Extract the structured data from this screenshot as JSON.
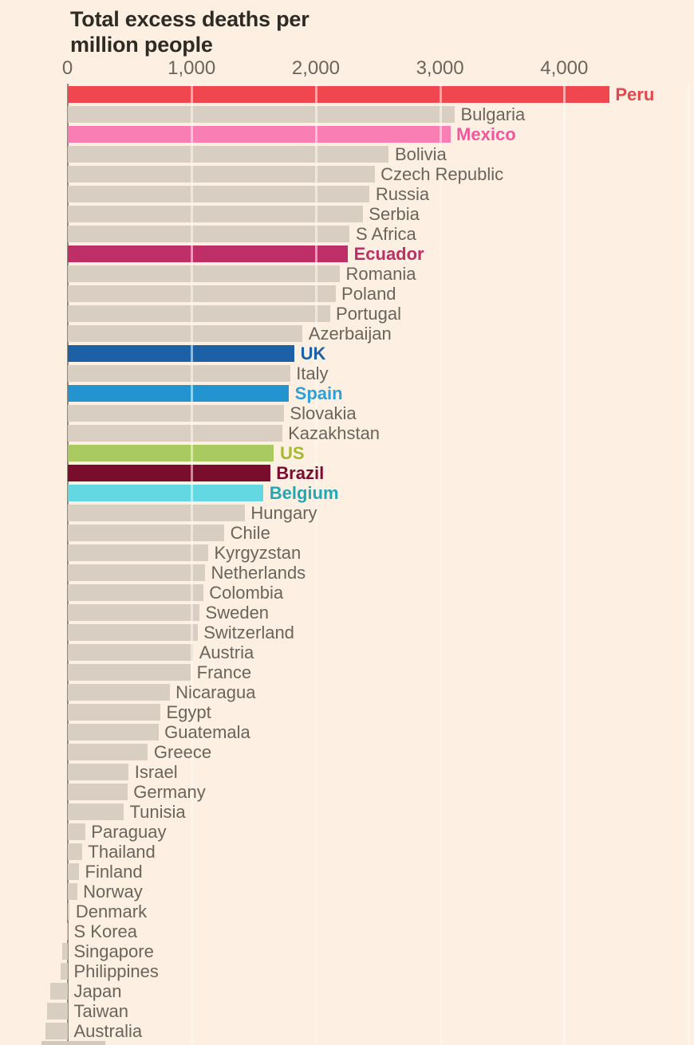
{
  "title_line1": "Total excess deaths per",
  "title_line2": "million people",
  "colors": {
    "background": "#fdf0e3",
    "default_bar": "#d8cfc2",
    "default_label": "#6b645b",
    "axis_line": "#91897c",
    "gridline_overlay": "rgba(255,252,246,0.55)",
    "title_text": "#2e2a24",
    "tick_text": "#6b655c",
    "clipped_bar": "#d2c9bc"
  },
  "chart_data": {
    "type": "bar",
    "orientation": "horizontal",
    "title": "Total excess deaths per million people",
    "xlabel": "",
    "ylabel": "",
    "axis_range": [
      0,
      5000
    ],
    "grid": true,
    "x_ticks": [
      {
        "value": 0,
        "label": "0"
      },
      {
        "value": 1000,
        "label": "1,000"
      },
      {
        "value": 2000,
        "label": "2,000"
      },
      {
        "value": 3000,
        "label": "3,000"
      },
      {
        "value": 4000,
        "label": "4,000"
      }
    ],
    "gridline_values": [
      1000,
      2000,
      3000,
      4000,
      5000
    ],
    "bars": [
      {
        "country": "Peru",
        "value": 4360,
        "highlight": true,
        "bar_color": "#ef4650",
        "label_color": "#e4474e"
      },
      {
        "country": "Bulgaria",
        "value": 3115,
        "highlight": false
      },
      {
        "country": "Mexico",
        "value": 3080,
        "highlight": true,
        "bar_color": "#f97eb3",
        "label_color": "#f4569d"
      },
      {
        "country": "Bolivia",
        "value": 2585,
        "highlight": false
      },
      {
        "country": "Czech Republic",
        "value": 2470,
        "highlight": false
      },
      {
        "country": "Russia",
        "value": 2430,
        "highlight": false
      },
      {
        "country": "Serbia",
        "value": 2375,
        "highlight": false
      },
      {
        "country": "S Africa",
        "value": 2270,
        "highlight": false
      },
      {
        "country": "Ecuador",
        "value": 2255,
        "highlight": true,
        "bar_color": "#bd2f66",
        "label_color": "#bd2f66"
      },
      {
        "country": "Romania",
        "value": 2190,
        "highlight": false
      },
      {
        "country": "Poland",
        "value": 2155,
        "highlight": false
      },
      {
        "country": "Portugal",
        "value": 2110,
        "highlight": false
      },
      {
        "country": "Azerbaijan",
        "value": 1890,
        "highlight": false
      },
      {
        "country": "UK",
        "value": 1825,
        "highlight": true,
        "bar_color": "#1c60a5",
        "label_color": "#1c60a5"
      },
      {
        "country": "Italy",
        "value": 1790,
        "highlight": false
      },
      {
        "country": "Spain",
        "value": 1780,
        "highlight": true,
        "bar_color": "#2394cf",
        "label_color": "#2fa0d5"
      },
      {
        "country": "Slovakia",
        "value": 1740,
        "highlight": false
      },
      {
        "country": "Kazakhstan",
        "value": 1725,
        "highlight": false
      },
      {
        "country": "US",
        "value": 1660,
        "highlight": true,
        "bar_color": "#a9ca60",
        "label_color": "#a6b92f"
      },
      {
        "country": "Brazil",
        "value": 1630,
        "highlight": true,
        "bar_color": "#790d2e",
        "label_color": "#790d2e"
      },
      {
        "country": "Belgium",
        "value": 1575,
        "highlight": true,
        "bar_color": "#63d7e2",
        "label_color": "#21a8b5"
      },
      {
        "country": "Hungary",
        "value": 1425,
        "highlight": false
      },
      {
        "country": "Chile",
        "value": 1260,
        "highlight": false
      },
      {
        "country": "Kyrgyzstan",
        "value": 1130,
        "highlight": false
      },
      {
        "country": "Netherlands",
        "value": 1105,
        "highlight": false
      },
      {
        "country": "Colombia",
        "value": 1090,
        "highlight": false
      },
      {
        "country": "Sweden",
        "value": 1060,
        "highlight": false
      },
      {
        "country": "Switzerland",
        "value": 1045,
        "highlight": false
      },
      {
        "country": "Austria",
        "value": 1010,
        "highlight": false
      },
      {
        "country": "France",
        "value": 990,
        "highlight": false
      },
      {
        "country": "Nicaragua",
        "value": 820,
        "highlight": false
      },
      {
        "country": "Egypt",
        "value": 745,
        "highlight": false
      },
      {
        "country": "Guatemala",
        "value": 730,
        "highlight": false
      },
      {
        "country": "Greece",
        "value": 645,
        "highlight": false
      },
      {
        "country": "Israel",
        "value": 490,
        "highlight": false
      },
      {
        "country": "Germany",
        "value": 480,
        "highlight": false
      },
      {
        "country": "Tunisia",
        "value": 450,
        "highlight": false
      },
      {
        "country": "Paraguay",
        "value": 140,
        "highlight": false
      },
      {
        "country": "Thailand",
        "value": 115,
        "highlight": false
      },
      {
        "country": "Finland",
        "value": 90,
        "highlight": false
      },
      {
        "country": "Norway",
        "value": 75,
        "highlight": false
      },
      {
        "country": "Denmark",
        "value": 15,
        "highlight": false
      },
      {
        "country": "S Korea",
        "value": -5,
        "highlight": false
      },
      {
        "country": "Singapore",
        "value": -45,
        "highlight": false
      },
      {
        "country": "Philippines",
        "value": -60,
        "highlight": false
      },
      {
        "country": "Japan",
        "value": -140,
        "highlight": false
      },
      {
        "country": "Taiwan",
        "value": -165,
        "highlight": false
      },
      {
        "country": "Australia",
        "value": -180,
        "highlight": false
      }
    ]
  }
}
